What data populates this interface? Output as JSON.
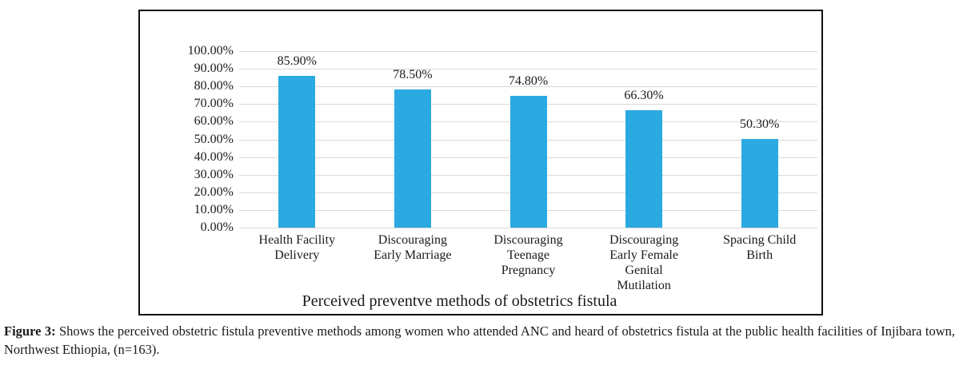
{
  "figure": {
    "caption_prefix": "Figure 3:",
    "caption_text": "Shows the perceived obstetric fistula preventive methods among women who attended ANC and heard of obstetrics fistula at the public health facilities of Injibara town, Northwest Ethiopia, (n=163)."
  },
  "chart_data": {
    "type": "bar",
    "title": "",
    "xlabel": "Perceived preventve methods of obstetrics fistula",
    "ylabel": "",
    "ylim": [
      0,
      100
    ],
    "grid": true,
    "legend": "none",
    "bar_color": "#2BAAE1",
    "gridline_color": "#D9D9D9",
    "categories": [
      "Health Facility Delivery",
      "Discouraging Early Marriage",
      "Discouraging Teenage Pregnancy",
      "Discouraging Early Female Genital Mutilation",
      "Spacing Child Birth"
    ],
    "category_label_lines": [
      [
        "Health Facility",
        "Delivery"
      ],
      [
        "Discouraging",
        "Early Marriage"
      ],
      [
        "Discouraging",
        "Teenage",
        "Pregnancy"
      ],
      [
        "Discouraging",
        "Early Female",
        "Genital",
        "Mutilation"
      ],
      [
        "Spacing Child",
        "Birth"
      ]
    ],
    "values": [
      85.9,
      78.5,
      74.8,
      66.3,
      50.3
    ],
    "value_labels": [
      "85.90%",
      "78.50%",
      "74.80%",
      "66.30%",
      "50.30%"
    ],
    "yticks": [
      100,
      90,
      80,
      70,
      60,
      50,
      40,
      30,
      20,
      10,
      0
    ],
    "ytick_labels": [
      "100.00%",
      "90.00%",
      "80.00%",
      "70.00%",
      "60.00%",
      "50.00%",
      "40.00%",
      "30.00%",
      "20.00%",
      "10.00%",
      "0.00%"
    ]
  }
}
